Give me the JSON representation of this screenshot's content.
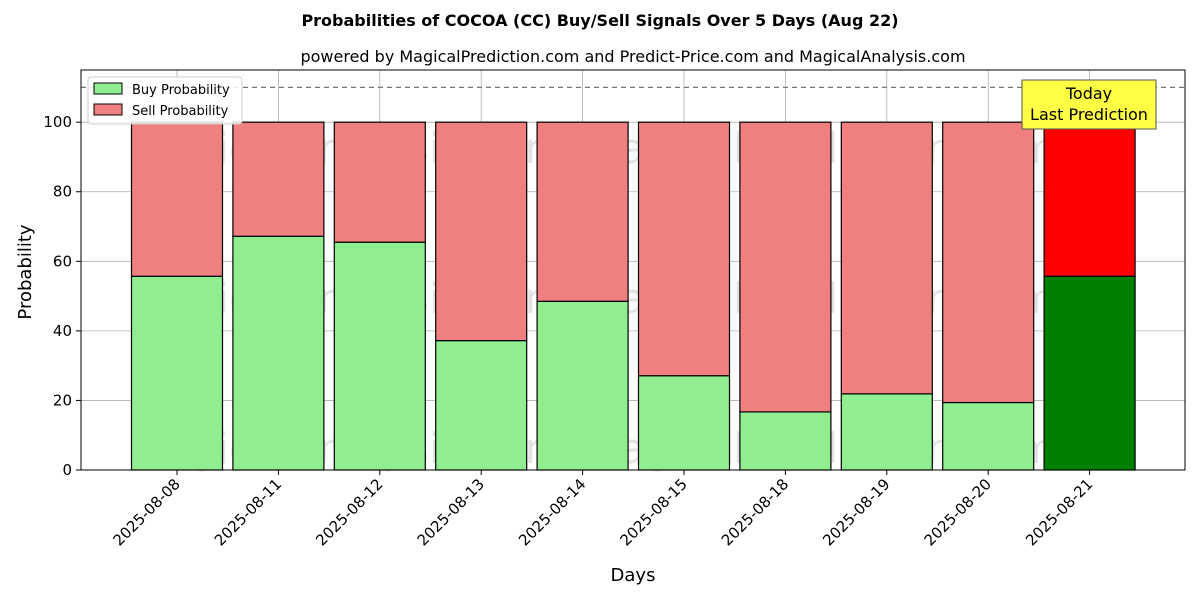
{
  "chart_data": {
    "type": "bar",
    "stacked": true,
    "title": "Probabilities of COCOA (CC) Buy/Sell Signals Over 5 Days (Aug 22)",
    "subtitle": "powered by MagicalPrediction.com and Predict-Price.com and MagicalAnalysis.com",
    "xlabel": "Days",
    "ylabel": "Probability",
    "ylim": [
      0,
      115
    ],
    "yticks": [
      0,
      20,
      40,
      60,
      80,
      100
    ],
    "grid": true,
    "legend_position": "top-left",
    "reference_line": 110,
    "categories": [
      "2025-08-08",
      "2025-08-11",
      "2025-08-12",
      "2025-08-13",
      "2025-08-14",
      "2025-08-15",
      "2025-08-18",
      "2025-08-19",
      "2025-08-20",
      "2025-08-21"
    ],
    "series": [
      {
        "name": "Buy Probability",
        "color": "#90ee90",
        "highlight_color": "#008000",
        "values": [
          55.7,
          67.2,
          65.5,
          37.2,
          48.5,
          27.1,
          16.7,
          21.9,
          19.4,
          55.7
        ]
      },
      {
        "name": "Sell Probability",
        "color": "#f08080",
        "highlight_color": "#ff0000",
        "values": [
          44.3,
          32.8,
          34.5,
          62.8,
          51.5,
          72.9,
          83.3,
          78.1,
          80.6,
          44.3
        ]
      }
    ],
    "highlight_index": 9,
    "annotation": {
      "line1": "Today",
      "line2": "Last Prediction",
      "color": "#ffff44"
    },
    "watermarks": [
      "MagicalAnalysis.com",
      "MagicalPrediction.com"
    ]
  }
}
